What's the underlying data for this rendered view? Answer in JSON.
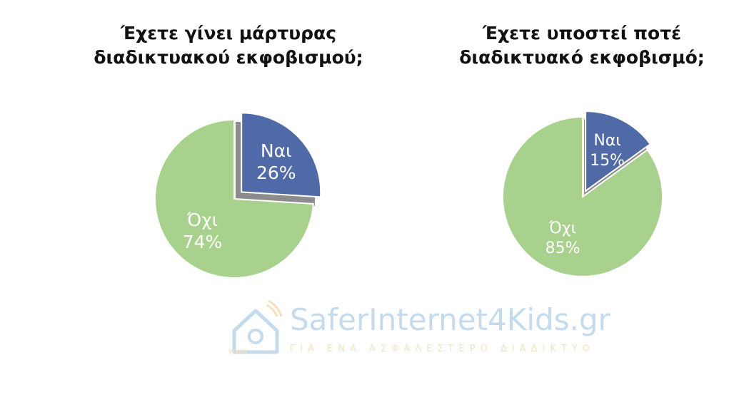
{
  "colors": {
    "yes": "#4f6aa6",
    "no": "#a8d18d",
    "shadow": "#8c8c8c",
    "label": "#ffffff"
  },
  "chart_data": [
    {
      "type": "pie",
      "title_lines": [
        "Έχετε γίνει μάρτυρας",
        "διαδικτυακού εκφοβισμού;"
      ],
      "slices": [
        {
          "name": "Ναι",
          "value": 26,
          "value_label": "26%",
          "color": "#4f6aa6",
          "exploded": true
        },
        {
          "name": "Όχι",
          "value": 74,
          "value_label": "74%",
          "color": "#a8d18d",
          "exploded": false
        }
      ]
    },
    {
      "type": "pie",
      "title_lines": [
        "Έχετε υποστεί ποτέ",
        "διαδικτυακό εκφοβισμό;"
      ],
      "slices": [
        {
          "name": "Ναι",
          "value": 15,
          "value_label": "15%",
          "color": "#4f6aa6",
          "exploded": true
        },
        {
          "name": "Όχι",
          "value": 85,
          "value_label": "85%",
          "color": "#a8d18d",
          "exploded": false
        }
      ]
    }
  ],
  "watermark": {
    "icon": "at-sign-house-icon",
    "brand": "SaferInternet4Kids.gr",
    "tagline": "ΓΙΑ ΕΝΑ ΑΣΦΑΛΕΣΤΕΡΟ ΔΙΑΔΙΚΤΥΟ",
    "www": "www"
  }
}
